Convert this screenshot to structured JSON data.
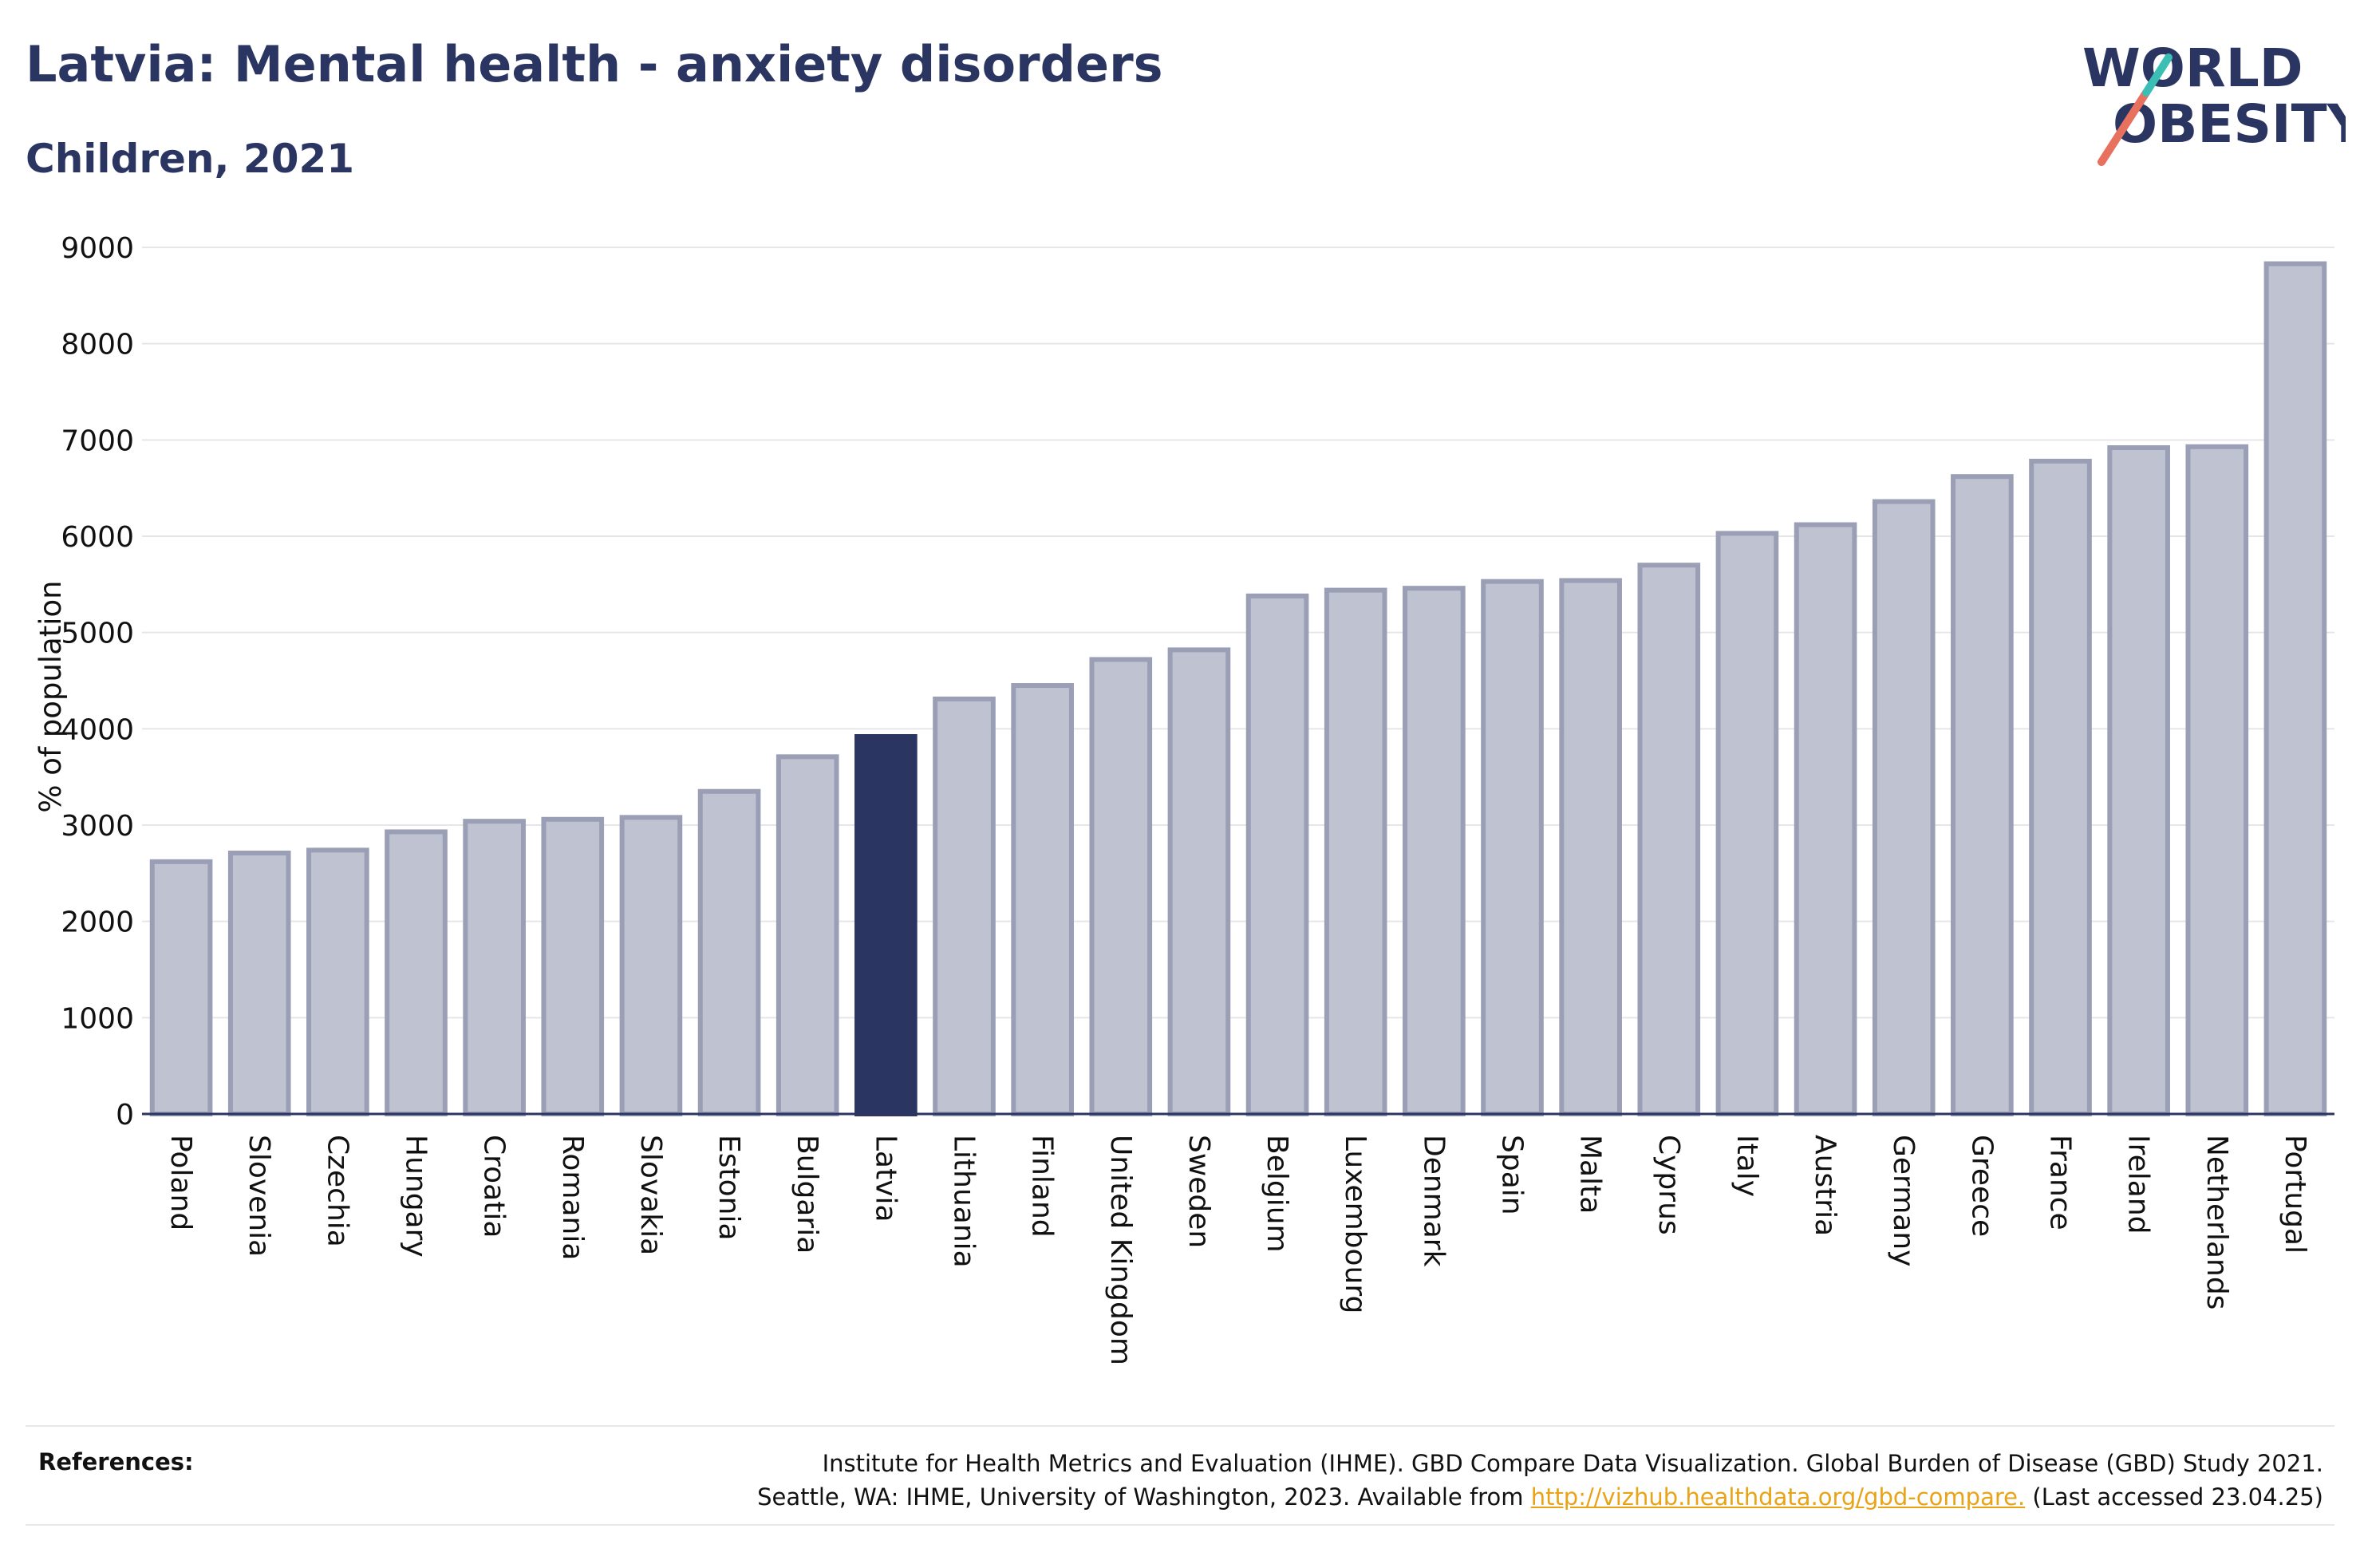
{
  "header": {
    "title": "Latvia: Mental health - anxiety disorders",
    "subtitle": "Children, 2021"
  },
  "logo": {
    "line1": "WORLD",
    "line2": "OBESITY",
    "text_color": "#2b3561",
    "slash_colors": [
      "#e8705f",
      "#3bbfb4"
    ]
  },
  "chart_data": {
    "type": "bar",
    "ylabel": "% of population",
    "xlabel": "",
    "ylim": [
      0,
      9000
    ],
    "yticks": [
      0,
      1000,
      2000,
      3000,
      4000,
      5000,
      6000,
      7000,
      8000,
      9000
    ],
    "grid": true,
    "highlight": "Latvia",
    "colors": {
      "bar": "#bfc2d0",
      "bar_edge": "#9a9fb6",
      "highlight": "#2b3561"
    },
    "categories": [
      "Poland",
      "Slovenia",
      "Czechia",
      "Hungary",
      "Croatia",
      "Romania",
      "Slovakia",
      "Estonia",
      "Bulgaria",
      "Latvia",
      "Lithuania",
      "Finland",
      "United Kingdom",
      "Sweden",
      "Belgium",
      "Luxembourg",
      "Denmark",
      "Spain",
      "Malta",
      "Cyprus",
      "Italy",
      "Austria",
      "Germany",
      "Greece",
      "France",
      "Ireland",
      "Netherlands",
      "Portugal"
    ],
    "values": [
      2620,
      2710,
      2740,
      2930,
      3040,
      3060,
      3080,
      3350,
      3710,
      3920,
      4310,
      4450,
      4720,
      4820,
      5380,
      5440,
      5460,
      5530,
      5540,
      5700,
      6030,
      6120,
      6360,
      6620,
      6780,
      6920,
      6930,
      8830
    ]
  },
  "references": {
    "label": "References:",
    "line1": "Institute for Health Metrics and Evaluation (IHME). GBD Compare Data Visualization. Global Burden of Disease (GBD) Study 2021.",
    "line2_prefix": "Seattle, WA: IHME, University of Washington, 2023. Available from ",
    "link": "http://vizhub.healthdata.org/gbd-compare.",
    "line2_suffix": " (Last accessed 23.04.25)"
  }
}
